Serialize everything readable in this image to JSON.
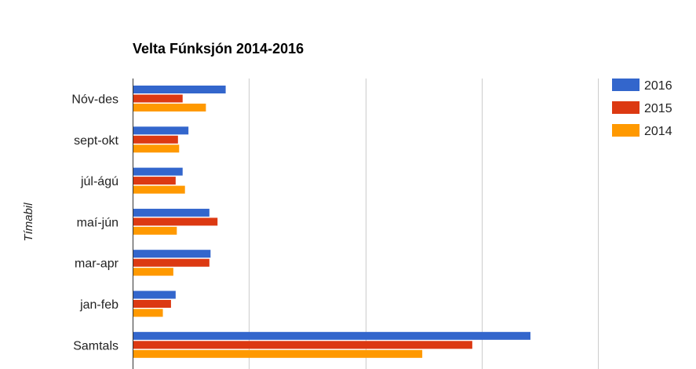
{
  "chart_data": {
    "type": "bar",
    "orientation": "horizontal",
    "title": "Velta Fúnksjón 2014-2016",
    "xlabel": "",
    "ylabel": "Tímabil",
    "categories": [
      "Nóv-des",
      "sept-okt",
      "júl-ágú",
      "maí-jún",
      "mar-apr",
      "jan-feb",
      "Samtals"
    ],
    "series": [
      {
        "name": "2016",
        "color": "#3366cc",
        "values": [
          8,
          4.8,
          4.3,
          6.6,
          6.7,
          3.7,
          34.2
        ]
      },
      {
        "name": "2015",
        "color": "#dc3912",
        "values": [
          4.3,
          3.9,
          3.7,
          7.3,
          6.6,
          3.3,
          29.2
        ]
      },
      {
        "name": "2014",
        "color": "#ff9900",
        "values": [
          6.3,
          4.0,
          4.5,
          3.8,
          3.5,
          2.6,
          24.9
        ]
      }
    ],
    "xlim": [
      0,
      40
    ],
    "gridlines": [
      0,
      10,
      20,
      30,
      40
    ],
    "grid": true,
    "legend_position": "right"
  }
}
